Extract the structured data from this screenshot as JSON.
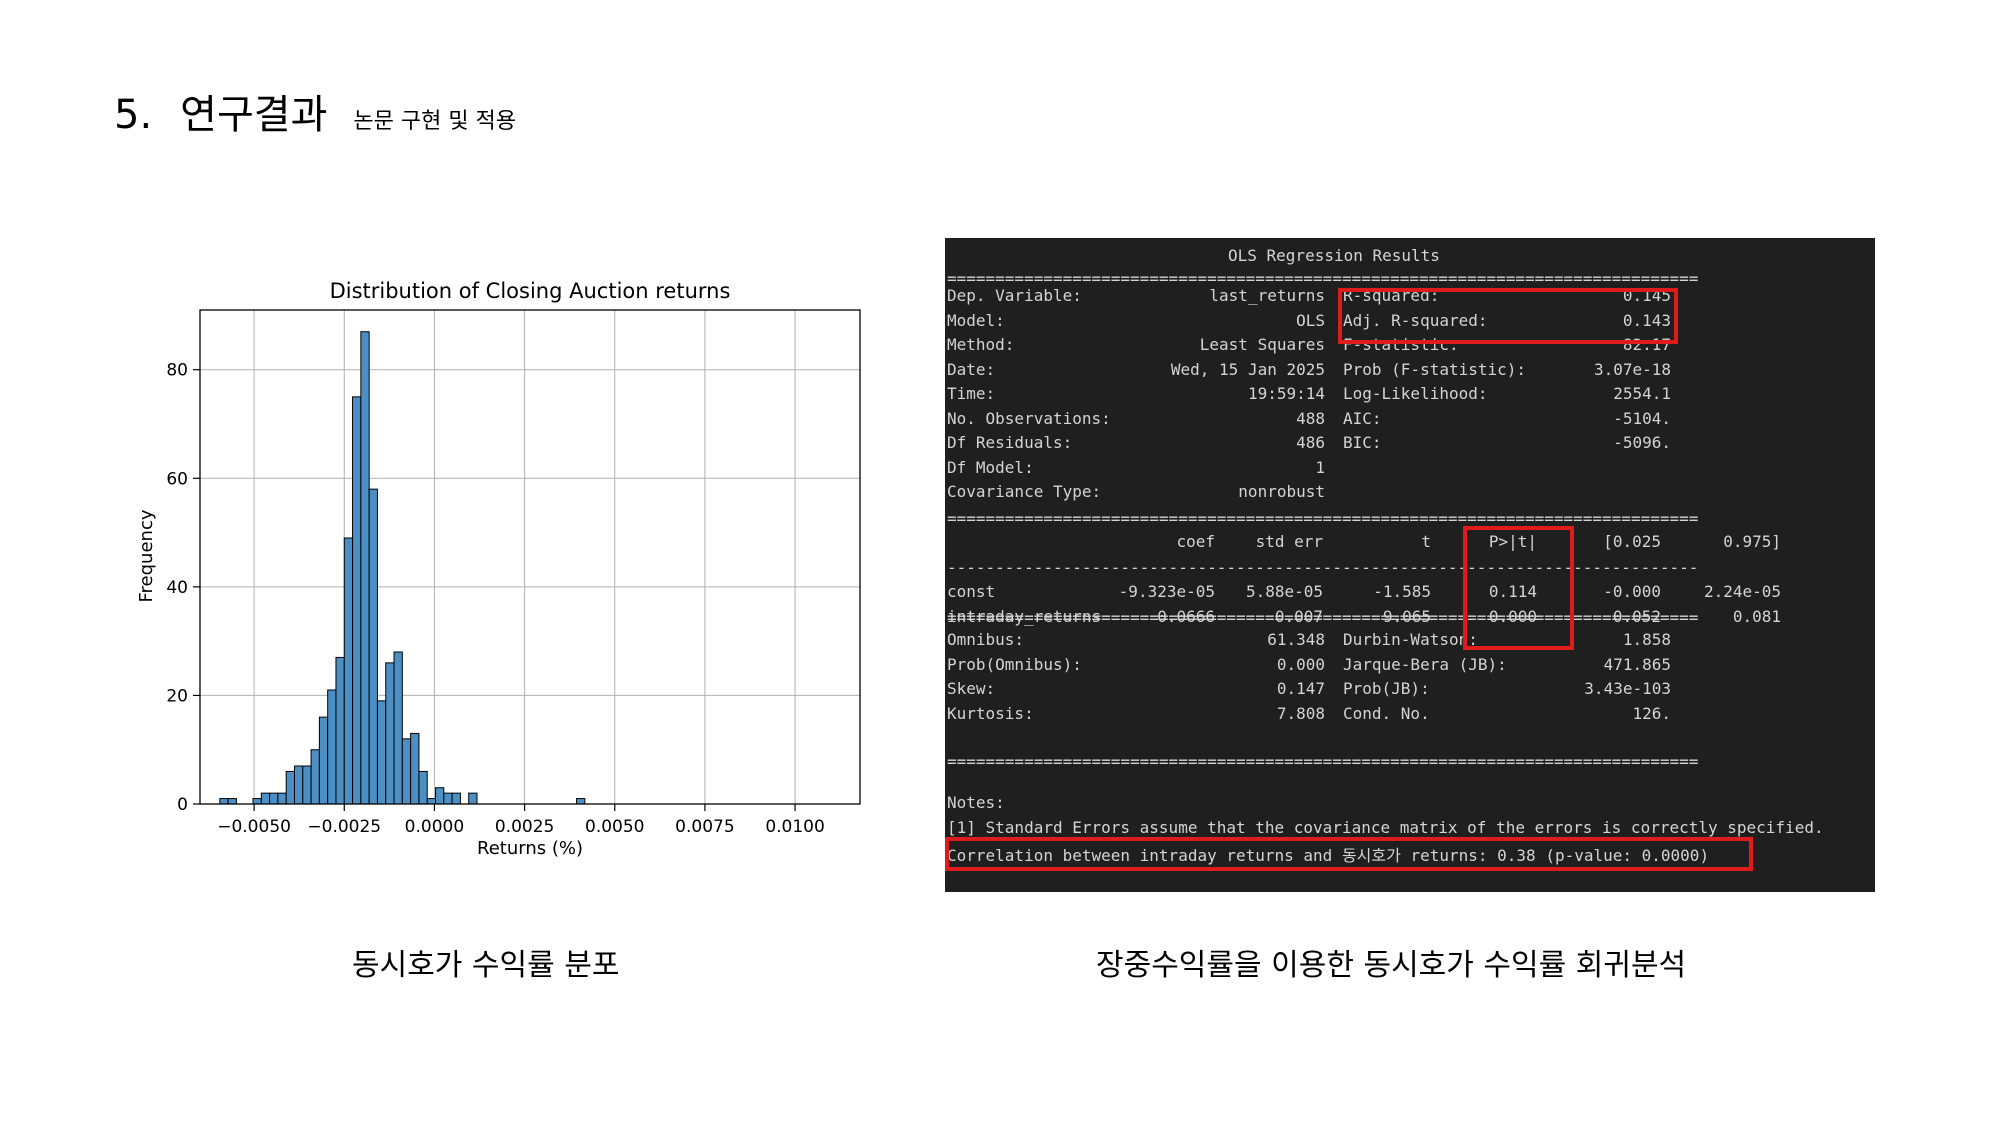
{
  "slide": {
    "number": "5.",
    "title": "연구결과",
    "subtitle": "논문 구현 및 적용",
    "caption_left": "동시호가 수익률 분포",
    "caption_right": "장중수익률을 이용한 동시호가 수익률 회귀분석"
  },
  "chart_data": {
    "type": "bar",
    "title": "Distribution of Closing Auction returns",
    "xlabel": "Returns (%)",
    "ylabel": "Frequency",
    "xlim": [
      -0.0065,
      0.0118
    ],
    "ylim": [
      0,
      91
    ],
    "xticks": [
      -0.005,
      -0.0025,
      0.0,
      0.0025,
      0.005,
      0.0075,
      0.01
    ],
    "xtick_labels": [
      "−0.0050",
      "−0.0025",
      "0.0000",
      "0.0025",
      "0.0050",
      "0.0075",
      "0.0100"
    ],
    "yticks": [
      0,
      20,
      40,
      60,
      80
    ],
    "grid": true,
    "bar_color": "#4c8fc4",
    "bins": [
      {
        "x0": -0.00595,
        "x1": -0.00572,
        "count": 1
      },
      {
        "x0": -0.00572,
        "x1": -0.00549,
        "count": 1
      },
      {
        "x0": -0.00503,
        "x1": -0.0048,
        "count": 1
      },
      {
        "x0": -0.0048,
        "x1": -0.00457,
        "count": 2
      },
      {
        "x0": -0.00457,
        "x1": -0.00434,
        "count": 2
      },
      {
        "x0": -0.00434,
        "x1": -0.00411,
        "count": 2
      },
      {
        "x0": -0.00411,
        "x1": -0.00388,
        "count": 6
      },
      {
        "x0": -0.00388,
        "x1": -0.00365,
        "count": 7
      },
      {
        "x0": -0.00365,
        "x1": -0.00342,
        "count": 7
      },
      {
        "x0": -0.00342,
        "x1": -0.00319,
        "count": 10
      },
      {
        "x0": -0.00319,
        "x1": -0.00296,
        "count": 16
      },
      {
        "x0": -0.00296,
        "x1": -0.00273,
        "count": 21
      },
      {
        "x0": -0.00273,
        "x1": -0.0025,
        "count": 27
      },
      {
        "x0": -0.0025,
        "x1": -0.00227,
        "count": 49
      },
      {
        "x0": -0.00227,
        "x1": -0.00204,
        "count": 75
      },
      {
        "x0": -0.00204,
        "x1": -0.00181,
        "count": 87
      },
      {
        "x0": -0.00181,
        "x1": -0.00158,
        "count": 58
      },
      {
        "x0": -0.00158,
        "x1": -0.00135,
        "count": 19
      },
      {
        "x0": -0.00135,
        "x1": -0.00112,
        "count": 26
      },
      {
        "x0": -0.00112,
        "x1": -0.00089,
        "count": 28
      },
      {
        "x0": -0.00089,
        "x1": -0.00066,
        "count": 12
      },
      {
        "x0": -0.00066,
        "x1": -0.00043,
        "count": 13
      },
      {
        "x0": -0.00043,
        "x1": -0.0002,
        "count": 6
      },
      {
        "x0": -0.0002,
        "x1": 3e-05,
        "count": 1
      },
      {
        "x0": 3e-05,
        "x1": 0.00026,
        "count": 3
      },
      {
        "x0": 0.00026,
        "x1": 0.00049,
        "count": 2
      },
      {
        "x0": 0.00049,
        "x1": 0.00072,
        "count": 2
      },
      {
        "x0": 0.00095,
        "x1": 0.00118,
        "count": 2
      },
      {
        "x0": 0.00394,
        "x1": 0.00417,
        "count": 1
      }
    ]
  },
  "ols": {
    "title": "OLS Regression Results",
    "rule_eq": "==============================================================================",
    "rule_dash": "------------------------------------------------------------------------------",
    "left_labels": [
      "Dep. Variable:",
      "Model:",
      "Method:",
      "Date:",
      "Time:",
      "No. Observations:",
      "Df Residuals:",
      "Df Model:",
      "Covariance Type:"
    ],
    "left_values": [
      "last_returns",
      "OLS",
      "Least Squares",
      "Wed, 15 Jan 2025",
      "19:59:14",
      "488",
      "486",
      "1",
      "nonrobust"
    ],
    "right_labels": [
      "R-squared:",
      "Adj. R-squared:",
      "F-statistic:",
      "Prob (F-statistic):",
      "Log-Likelihood:",
      "AIC:",
      "BIC:"
    ],
    "right_values": [
      "0.145",
      "0.143",
      "82.17",
      "3.07e-18",
      "2554.1",
      "-5104.",
      "-5096."
    ],
    "coef_headers": [
      "coef",
      "std err",
      "t",
      "P>|t|",
      "[0.025",
      "0.975]"
    ],
    "coef_rows": [
      {
        "name": "const",
        "coef": "-9.323e-05",
        "std_err": "5.88e-05",
        "t": "-1.585",
        "p": "0.114",
        "lo": "-0.000",
        "hi": "2.24e-05"
      },
      {
        "name": "intraday_returns",
        "coef": "0.0666",
        "std_err": "0.007",
        "t": "9.065",
        "p": "0.000",
        "lo": "0.052",
        "hi": "0.081"
      }
    ],
    "diag_left_labels": [
      "Omnibus:",
      "Prob(Omnibus):",
      "Skew:",
      "Kurtosis:"
    ],
    "diag_left_values": [
      "61.348",
      "0.000",
      "0.147",
      "7.808"
    ],
    "diag_right_labels": [
      "Durbin-Watson:",
      "Jarque-Bera (JB):",
      "Prob(JB):",
      "Cond. No."
    ],
    "diag_right_values": [
      "1.858",
      "471.865",
      "3.43e-103",
      "126."
    ],
    "notes_title": "Notes:",
    "note_1": "[1] Standard Errors assume that the covariance matrix of the errors is correctly specified.",
    "correlation": "Correlation between intraday returns and 동시호가 returns: 0.38 (p-value: 0.0000)",
    "highlight_color": "#e01b1b"
  }
}
